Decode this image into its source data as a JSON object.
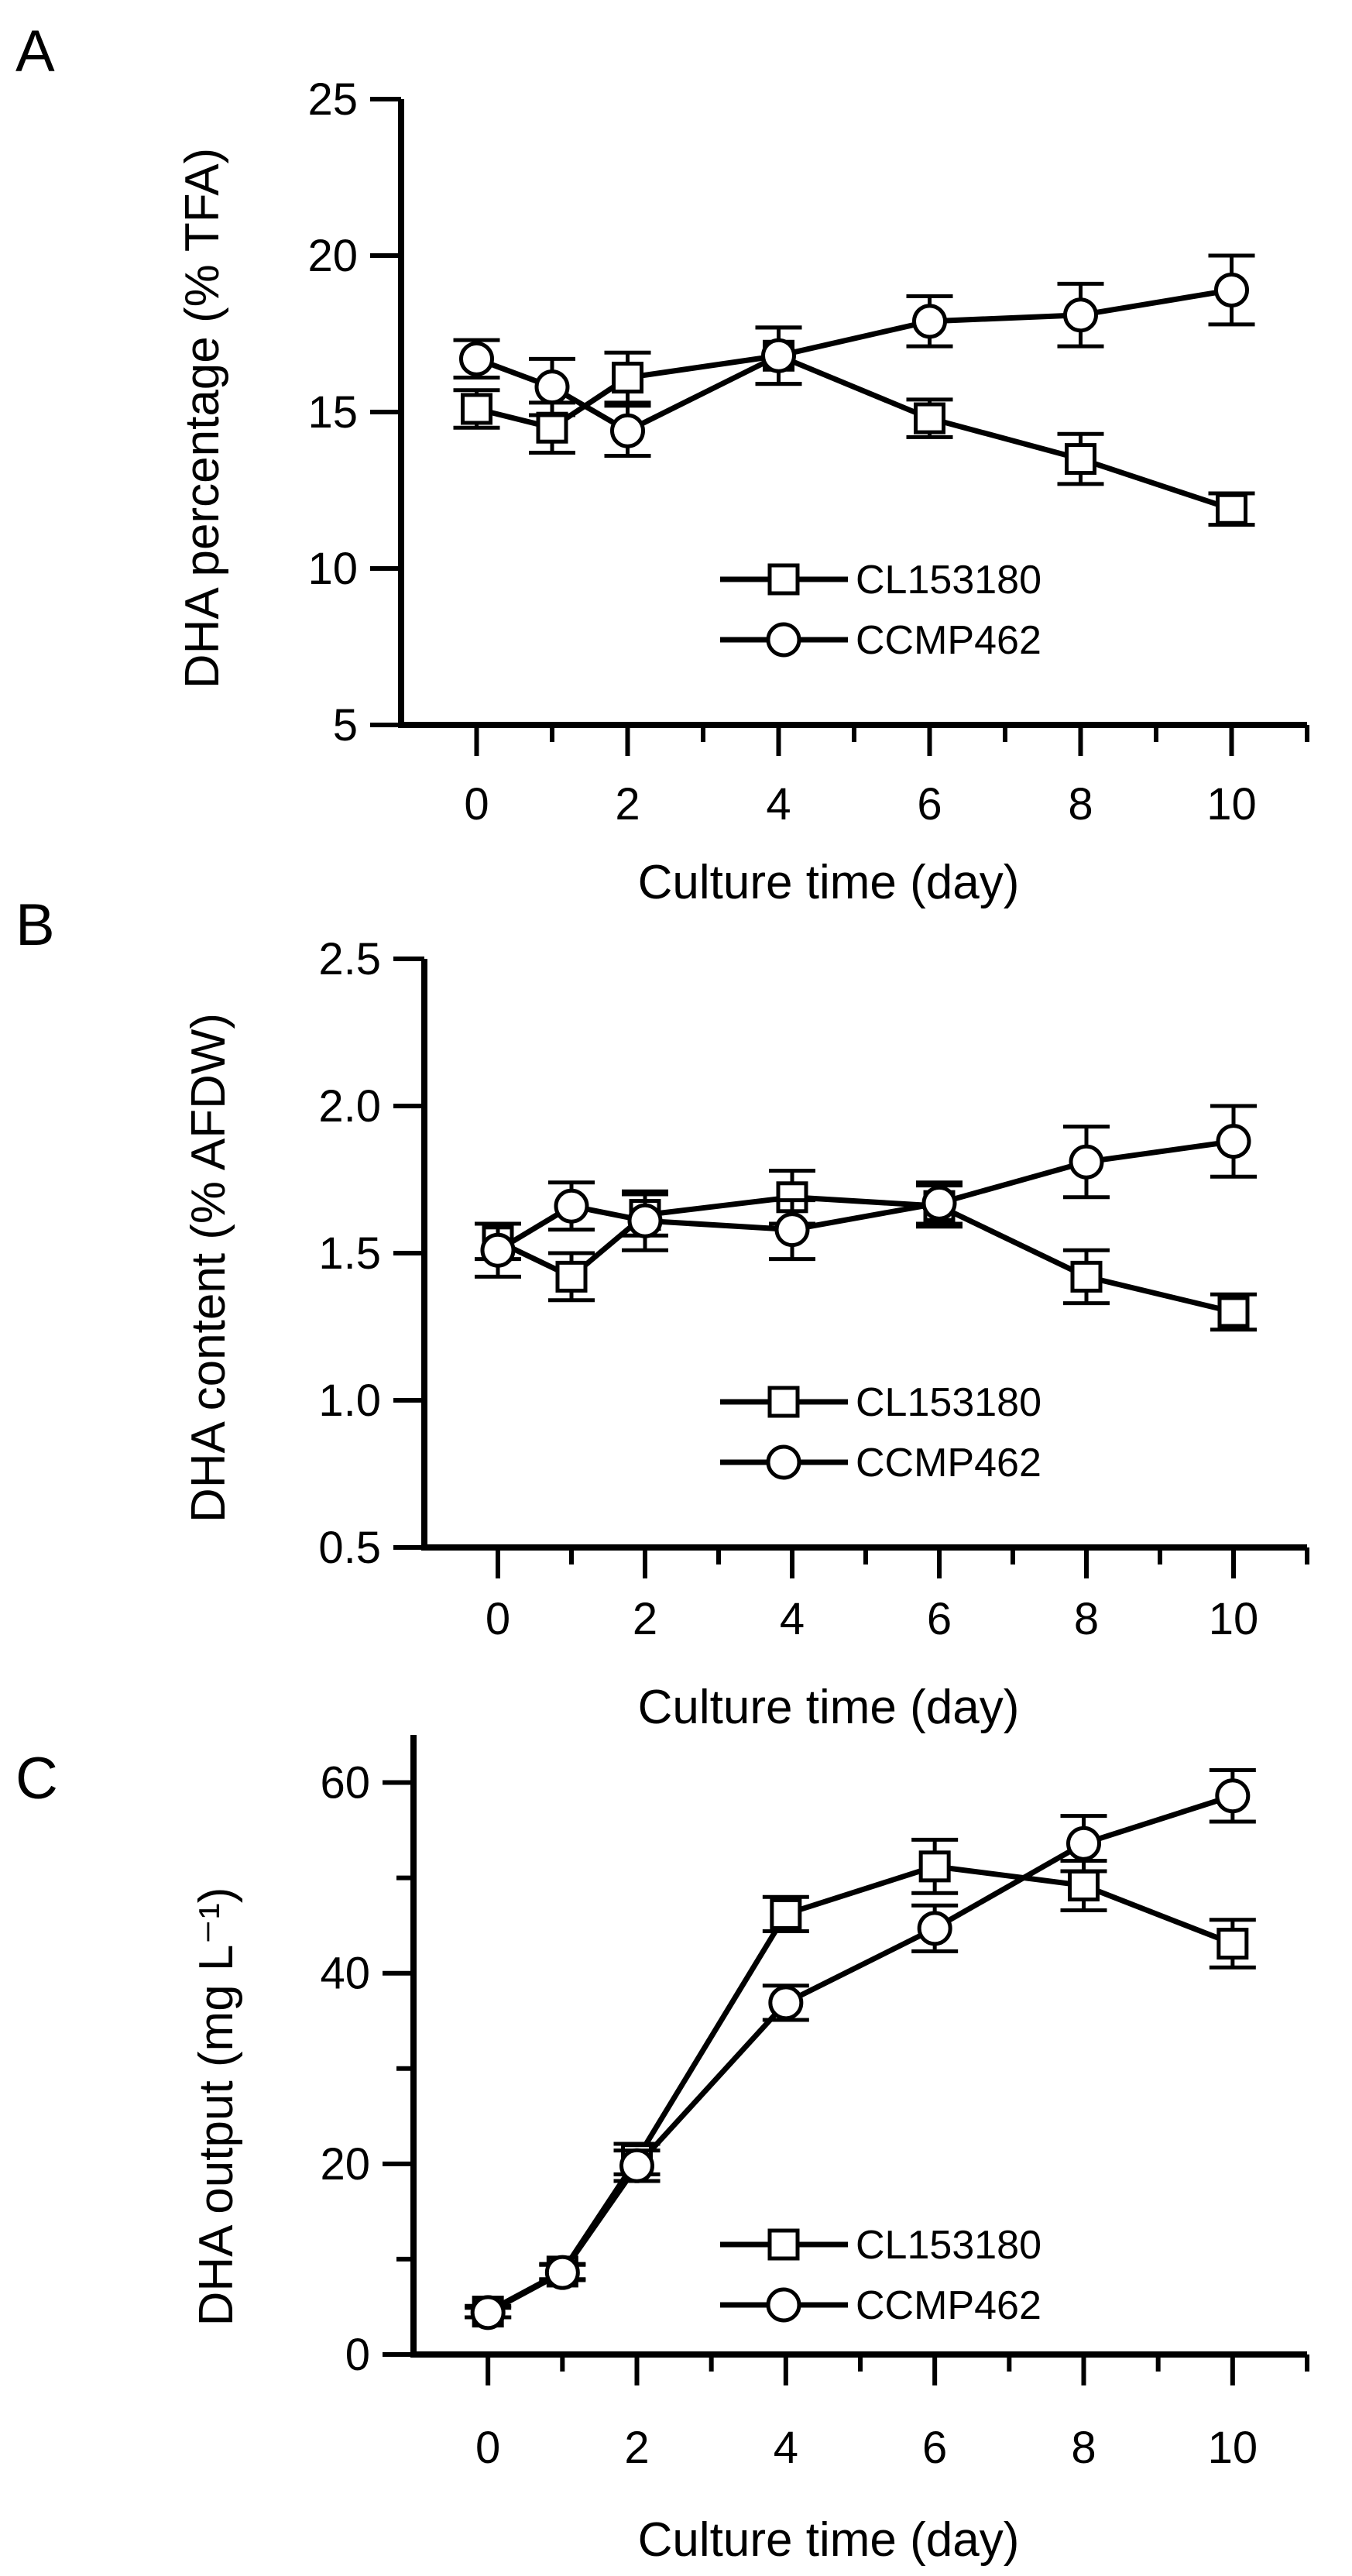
{
  "panels": [
    {
      "label": "A",
      "chart_data": {
        "type": "line",
        "xlabel": "Culture time (day)",
        "ylabel": "DHA percentage (% TFA)",
        "xlim": [
          -1,
          11
        ],
        "ylim": [
          5,
          25
        ],
        "xticks": [
          0,
          2,
          4,
          6,
          8,
          10
        ],
        "xminor": [
          1,
          3,
          5,
          7,
          9
        ],
        "yticks": [
          5,
          10,
          15,
          20,
          25
        ],
        "ytick_labels": [
          "5",
          "10",
          "15",
          "20",
          "25"
        ],
        "legend_position": "lower-right",
        "series": [
          {
            "name": "CL153180",
            "marker": "square",
            "x": [
              0,
              1,
              2,
              4,
              6,
              8,
              10
            ],
            "y": [
              15.1,
              14.5,
              16.1,
              16.8,
              14.8,
              13.5,
              11.9
            ],
            "err": [
              0.6,
              0.8,
              0.8,
              0.9,
              0.6,
              0.8,
              0.5
            ]
          },
          {
            "name": "CCMP462",
            "marker": "circle",
            "x": [
              0,
              1,
              2,
              4,
              6,
              8,
              10
            ],
            "y": [
              16.7,
              15.8,
              14.4,
              16.8,
              17.9,
              18.1,
              18.9
            ],
            "err": [
              0.6,
              0.9,
              0.8,
              0.9,
              0.8,
              1.0,
              1.1
            ]
          }
        ]
      }
    },
    {
      "label": "B",
      "chart_data": {
        "type": "line",
        "xlabel": "Culture time (day)",
        "ylabel": "DHA content (% AFDW)",
        "xlim": [
          -1,
          11
        ],
        "ylim": [
          0.5,
          2.5
        ],
        "xticks": [
          0,
          2,
          4,
          6,
          8,
          10
        ],
        "xminor": [
          1,
          3,
          5,
          7,
          9
        ],
        "yticks": [
          0.5,
          1.0,
          1.5,
          2.0,
          2.5
        ],
        "ytick_labels": [
          "0.5",
          "1.0",
          "1.5",
          "2.0",
          "2.5"
        ],
        "legend_position": "lower-right",
        "series": [
          {
            "name": "CL153180",
            "marker": "square",
            "x": [
              0,
              1,
              2,
              4,
              6,
              8,
              10
            ],
            "y": [
              1.54,
              1.42,
              1.63,
              1.69,
              1.66,
              1.42,
              1.3
            ],
            "err": [
              0.06,
              0.08,
              0.07,
              0.09,
              0.07,
              0.09,
              0.06
            ]
          },
          {
            "name": "CCMP462",
            "marker": "circle",
            "x": [
              0,
              1,
              2,
              4,
              6,
              8,
              10
            ],
            "y": [
              1.51,
              1.66,
              1.61,
              1.58,
              1.67,
              1.81,
              1.88
            ],
            "err": [
              0.09,
              0.08,
              0.1,
              0.1,
              0.07,
              0.12,
              0.12
            ]
          }
        ]
      }
    },
    {
      "label": "C",
      "chart_data": {
        "type": "line",
        "xlabel": "Culture time (day)",
        "ylabel": "DHA output (mg L⁻¹)",
        "xlim": [
          -1,
          11
        ],
        "ylim": [
          0,
          65
        ],
        "xticks": [
          0,
          2,
          4,
          6,
          8,
          10
        ],
        "xminor": [
          1,
          3,
          5,
          7,
          9
        ],
        "yticks": [
          0,
          20,
          40,
          60
        ],
        "ytick_labels": [
          "0",
          "20",
          "40",
          "60"
        ],
        "yminor": [
          10,
          30,
          50
        ],
        "legend_position": "lower-right",
        "series": [
          {
            "name": "CL153180",
            "marker": "square",
            "x": [
              0,
              1,
              2,
              4,
              6,
              8,
              10
            ],
            "y": [
              4.5,
              8.7,
              20.5,
              46.2,
              51.2,
              49.2,
              43.1
            ],
            "err": [
              0.6,
              0.8,
              1.6,
              1.8,
              2.8,
              2.6,
              2.5
            ]
          },
          {
            "name": "CCMP462",
            "marker": "circle",
            "x": [
              0,
              1,
              2,
              4,
              6,
              8,
              10
            ],
            "y": [
              4.4,
              8.6,
              19.8,
              36.9,
              44.7,
              53.6,
              58.6
            ],
            "err": [
              0.5,
              0.8,
              1.6,
              1.8,
              2.4,
              2.9,
              2.7
            ]
          }
        ]
      }
    }
  ]
}
